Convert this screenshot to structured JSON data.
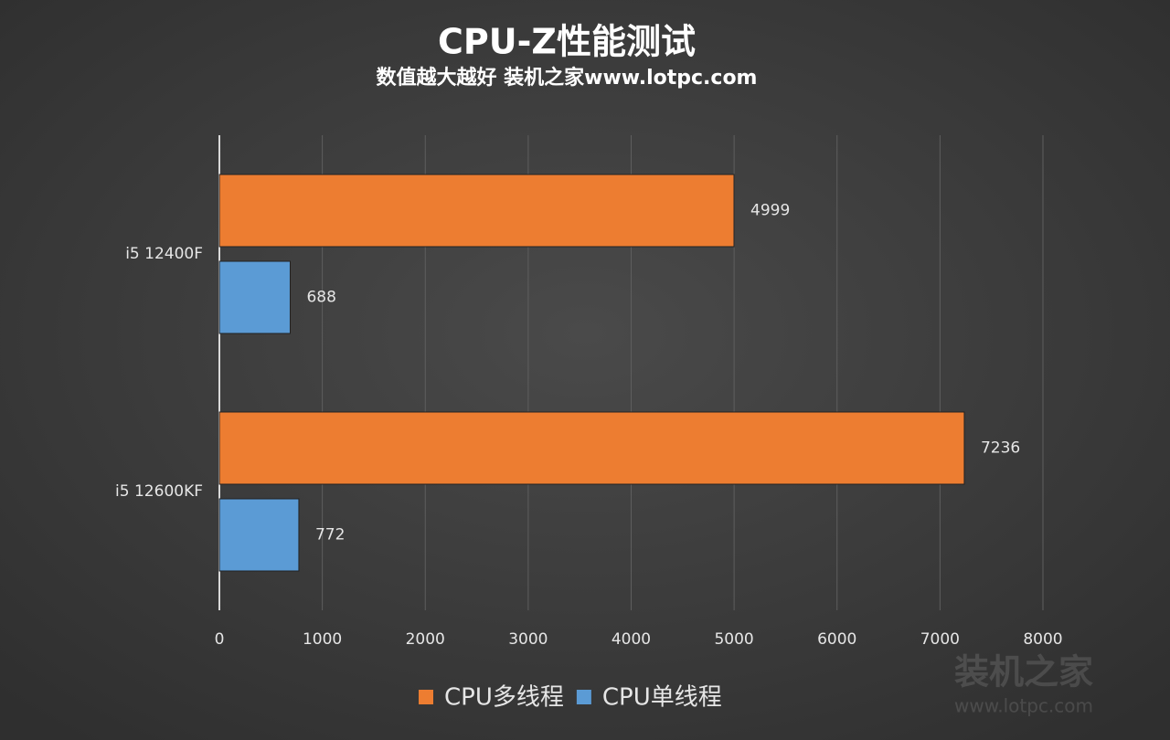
{
  "chart_data": {
    "type": "barh",
    "title": "CPU-Z性能测试",
    "subtitle": "数值越大越好 装机之家www.lotpc.com",
    "categories": [
      "i5 12400F",
      "i5 12600KF"
    ],
    "series": [
      {
        "name": "CPU多线程",
        "color": "#ed7d31",
        "values": [
          4999,
          7236
        ]
      },
      {
        "name": "CPU单线程",
        "color": "#5b9bd5",
        "values": [
          688,
          772
        ]
      }
    ],
    "xlim": [
      0,
      8000
    ],
    "xticks": [
      0,
      1000,
      2000,
      3000,
      4000,
      5000,
      6000,
      7000,
      8000
    ],
    "grid": true,
    "legend": "bottom",
    "watermark": "装机之家",
    "watermark_url": "www.lotpc.com"
  }
}
